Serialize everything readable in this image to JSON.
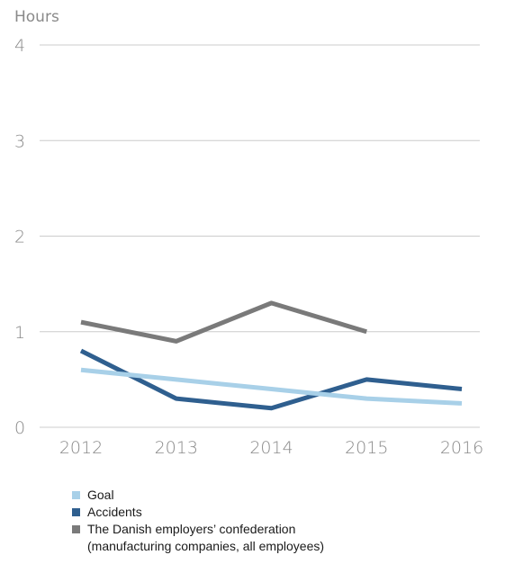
{
  "chart_data": {
    "type": "line",
    "ylabel": "Hours",
    "xlabel": "",
    "ylim": [
      0,
      4
    ],
    "yticks": [
      "0",
      "1",
      "2",
      "3",
      "4"
    ],
    "x": [
      "2012",
      "2013",
      "2014",
      "2015",
      "2016"
    ],
    "grid": true,
    "legend_position": "bottom-left",
    "series": [
      {
        "name": "The Danish employers’ confederation\n(manufacturing companies, all employees)",
        "color": "#7a7a7a",
        "values": [
          1.1,
          0.9,
          1.3,
          1.0,
          null
        ]
      },
      {
        "name": "Accidents",
        "color": "#2f5f8f",
        "values": [
          0.8,
          0.3,
          0.2,
          0.5,
          0.4
        ]
      },
      {
        "name": "Goal",
        "color": "#a8d0e8",
        "values": [
          0.6,
          0.5,
          0.4,
          0.3,
          0.25
        ]
      }
    ],
    "legend_order": [
      "Goal",
      "Accidents",
      "The Danish employers’ confederation\n(manufacturing companies, all employees)"
    ]
  }
}
